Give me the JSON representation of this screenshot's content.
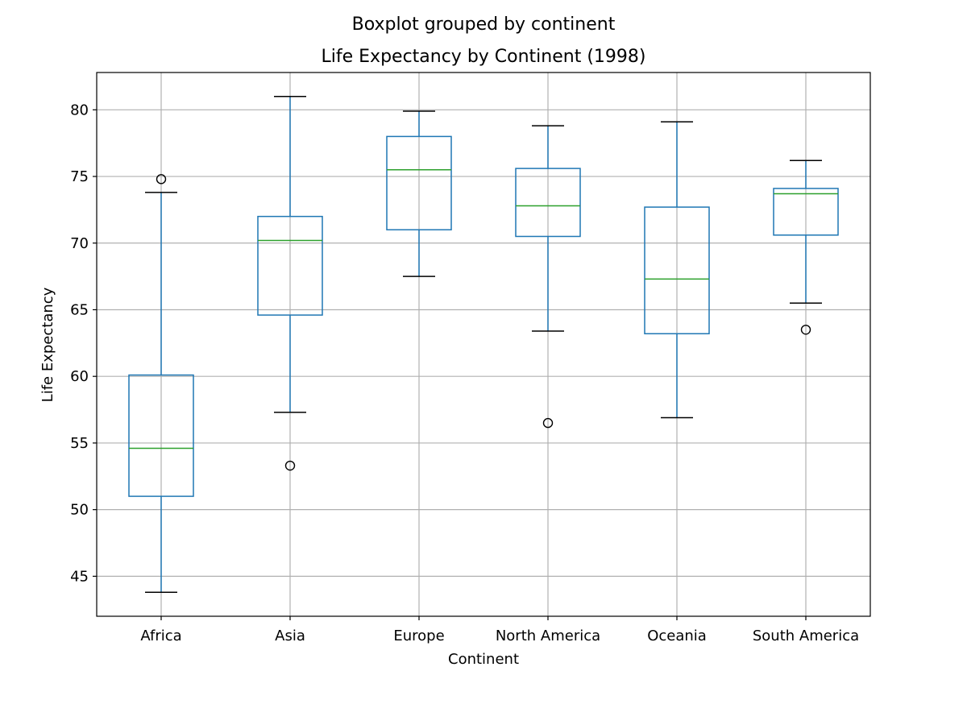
{
  "figure": {
    "suptitle": "Boxplot grouped by continent"
  },
  "chart_data": {
    "type": "boxplot",
    "title": "Life Expectancy by Continent (1998)",
    "xlabel": "Continent",
    "ylabel": "Life Expectancy",
    "ylim": [
      42,
      82.8
    ],
    "yticks": [
      45,
      50,
      55,
      60,
      65,
      70,
      75,
      80
    ],
    "grid": true,
    "colors": {
      "box": "#1f77b4",
      "median": "#2ca02c",
      "whisker_cap": "#000000",
      "grid": "#b0b0b0",
      "flier": "#000000"
    },
    "categories": [
      "Africa",
      "Asia",
      "Europe",
      "North America",
      "Oceania",
      "South America"
    ],
    "boxes": [
      {
        "category": "Africa",
        "whisker_low": 43.8,
        "q1": 51.0,
        "median": 54.6,
        "q3": 60.1,
        "whisker_high": 73.8,
        "fliers": [
          74.8
        ]
      },
      {
        "category": "Asia",
        "whisker_low": 57.3,
        "q1": 64.6,
        "median": 70.2,
        "q3": 72.0,
        "whisker_high": 81.0,
        "fliers": [
          53.3
        ]
      },
      {
        "category": "Europe",
        "whisker_low": 67.5,
        "q1": 71.0,
        "median": 75.5,
        "q3": 78.0,
        "whisker_high": 79.9,
        "fliers": []
      },
      {
        "category": "North America",
        "whisker_low": 63.4,
        "q1": 70.5,
        "median": 72.8,
        "q3": 75.6,
        "whisker_high": 78.8,
        "fliers": [
          56.5
        ]
      },
      {
        "category": "Oceania",
        "whisker_low": 56.9,
        "q1": 63.2,
        "median": 67.3,
        "q3": 72.7,
        "whisker_high": 79.1,
        "fliers": []
      },
      {
        "category": "South America",
        "whisker_low": 65.5,
        "q1": 70.6,
        "median": 73.7,
        "q3": 74.1,
        "whisker_high": 76.2,
        "fliers": [
          63.5
        ]
      }
    ]
  }
}
